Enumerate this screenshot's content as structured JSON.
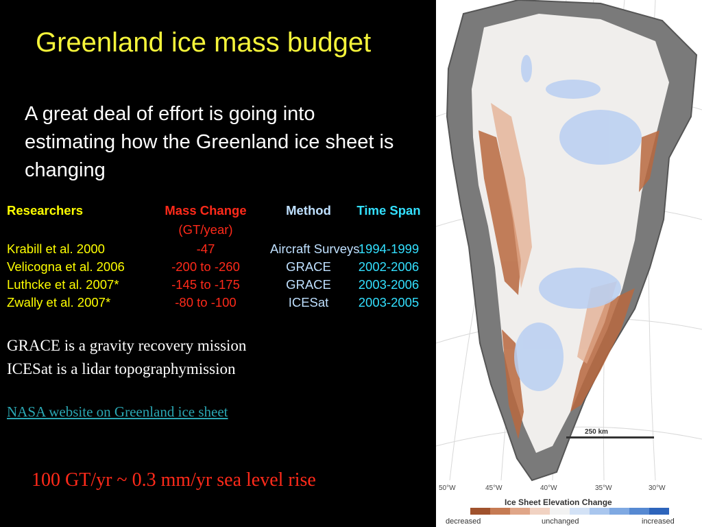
{
  "slide": {
    "title": "Greenland ice mass budget",
    "intro": "A great deal of effort is going into estimating how the Greenland ice sheet is changing"
  },
  "table": {
    "headers": {
      "researchers": "Researchers",
      "mass_change": "Mass Change",
      "mass_change_unit": "(GT/year)",
      "method": "Method",
      "time_span": "Time Span"
    },
    "rows": [
      {
        "researchers": "Krabill et al. 2000",
        "mass_change": "-47",
        "method": "Aircraft Surveys",
        "time_span": "1994-1999"
      },
      {
        "researchers": "Velicogna et al. 2006",
        "mass_change": "-200 to -260",
        "method": "GRACE",
        "time_span": "2002-2006"
      },
      {
        "researchers": "Luthcke et al. 2007*",
        "mass_change": "-145 to -175",
        "method": "GRACE",
        "time_span": "2003-2006"
      },
      {
        "researchers": "Zwally et al. 2007*",
        "mass_change": "-80 to -100",
        "method": "ICESat",
        "time_span": "2003-2005"
      }
    ],
    "colors": {
      "header_researchers": "#ffff00",
      "header_mass_change": "#ff2a1a",
      "header_method": "#bfe0ff",
      "header_time_span": "#33e0ff"
    }
  },
  "notes": {
    "grace": "GRACE is a gravity recovery mission",
    "icesat": "ICESat is a lidar topographymission"
  },
  "link": {
    "text": "NASA website on Greenland ice sheet"
  },
  "conversion": "100 GT/yr ~ 0.3 mm/yr sea level rise",
  "map": {
    "scale_label": "250 km",
    "longitude_labels": [
      "50°W",
      "45°W",
      "40°W",
      "35°W",
      "30°W"
    ],
    "legend_title": "Ice Sheet Elevation Change",
    "legend_labels": {
      "left": "decreased",
      "middle": "unchanged",
      "right": "increased"
    },
    "legend_colors": [
      "#a0522d",
      "#c67b53",
      "#e0a688",
      "#f1d2c2",
      "#f2f2f2",
      "#d3e2f6",
      "#a9c6ee",
      "#7fa9e2",
      "#5689d2",
      "#2d64bb"
    ],
    "colors": {
      "background": "#ffffff",
      "land": "#f0eeec",
      "terrain": "#6b6b6b",
      "decrease": "#b8683f",
      "increase": "#b9cff2"
    }
  }
}
